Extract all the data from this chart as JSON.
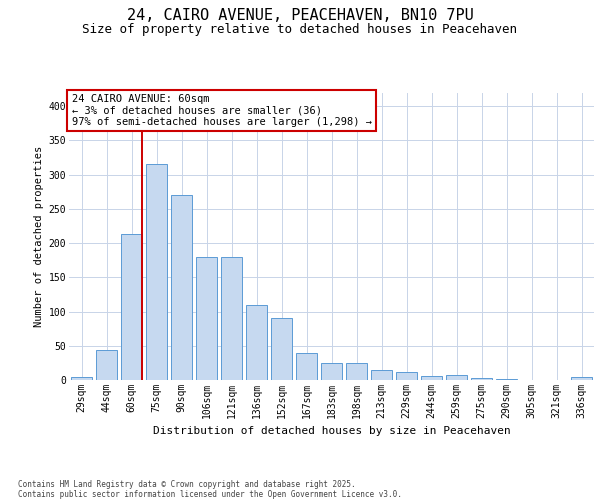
{
  "title1": "24, CAIRO AVENUE, PEACEHAVEN, BN10 7PU",
  "title2": "Size of property relative to detached houses in Peacehaven",
  "xlabel": "Distribution of detached houses by size in Peacehaven",
  "ylabel": "Number of detached properties",
  "categories": [
    "29sqm",
    "44sqm",
    "60sqm",
    "75sqm",
    "90sqm",
    "106sqm",
    "121sqm",
    "136sqm",
    "152sqm",
    "167sqm",
    "183sqm",
    "198sqm",
    "213sqm",
    "229sqm",
    "244sqm",
    "259sqm",
    "275sqm",
    "290sqm",
    "305sqm",
    "321sqm",
    "336sqm"
  ],
  "values": [
    5,
    44,
    213,
    315,
    270,
    179,
    179,
    110,
    90,
    40,
    25,
    25,
    14,
    11,
    6,
    7,
    3,
    1,
    0,
    0,
    4
  ],
  "bar_color": "#c6d9f0",
  "bar_edge_color": "#5b9bd5",
  "vline_index": 2,
  "vline_color": "#cc0000",
  "annotation_line1": "24 CAIRO AVENUE: 60sqm",
  "annotation_line2": "← 3% of detached houses are smaller (36)",
  "annotation_line3": "97% of semi-detached houses are larger (1,298) →",
  "annotation_box_facecolor": "#ffffff",
  "annotation_box_edgecolor": "#cc0000",
  "ylim": [
    0,
    420
  ],
  "yticks": [
    0,
    50,
    100,
    150,
    200,
    250,
    300,
    350,
    400
  ],
  "footer_line1": "Contains HM Land Registry data © Crown copyright and database right 2025.",
  "footer_line2": "Contains public sector information licensed under the Open Government Licence v3.0.",
  "bg_color": "#ffffff",
  "grid_color": "#c8d4e8",
  "title1_fontsize": 11,
  "title2_fontsize": 9,
  "xlabel_fontsize": 8,
  "ylabel_fontsize": 7.5,
  "tick_fontsize": 7,
  "annotation_fontsize": 7.5,
  "footer_fontsize": 5.5
}
